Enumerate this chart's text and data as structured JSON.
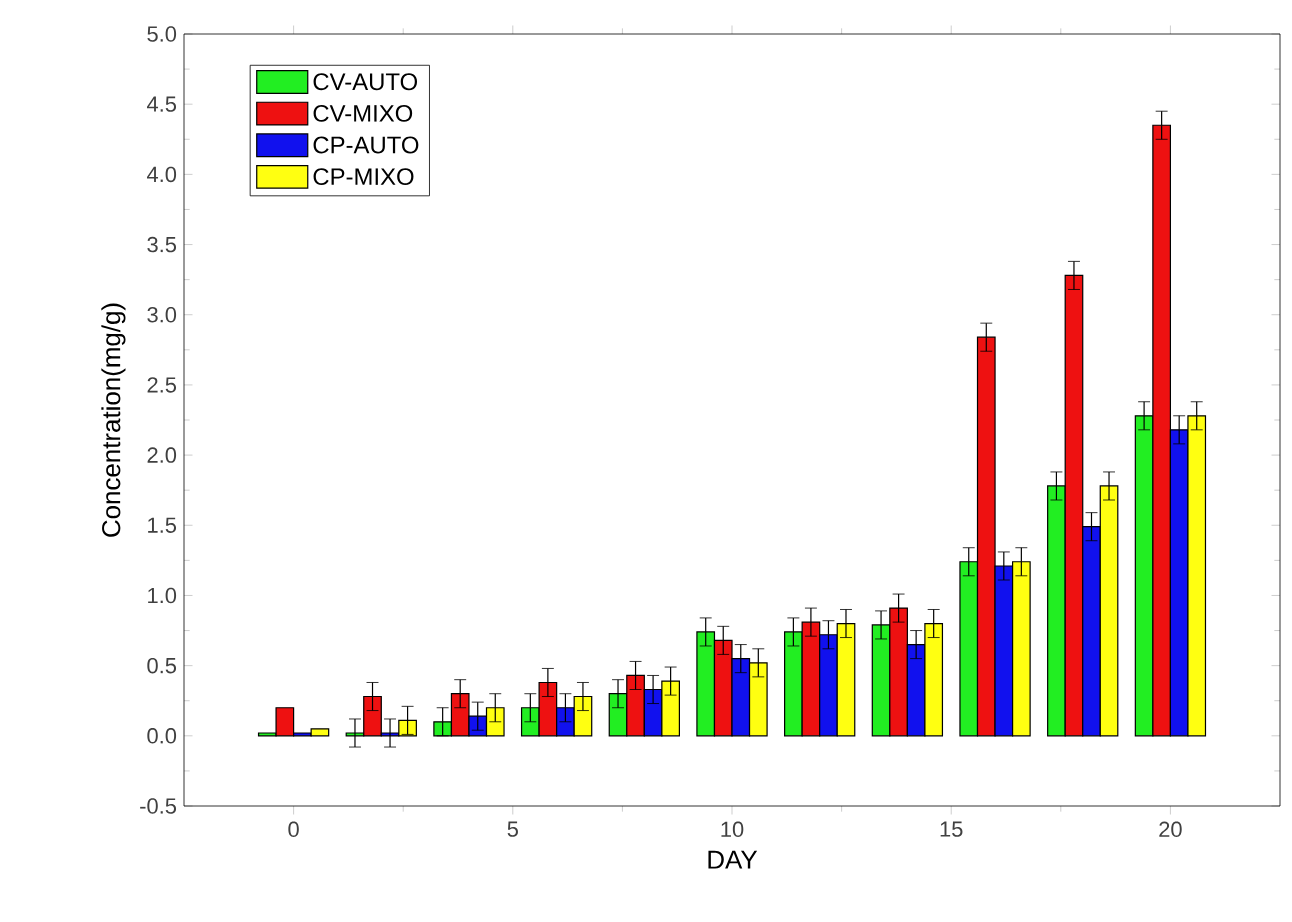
{
  "chart_data": {
    "type": "bar",
    "xlabel": "DAY",
    "ylabel": "Concentration(mg/g)",
    "x": [
      0,
      2,
      4,
      6,
      8,
      10,
      12,
      14,
      16,
      18,
      20
    ],
    "series": [
      {
        "name": "CV-AUTO",
        "color": "#22ee22",
        "values": [
          0.02,
          0.02,
          0.1,
          0.2,
          0.3,
          0.74,
          0.74,
          0.79,
          1.24,
          1.78,
          2.28
        ],
        "errors": [
          null,
          0.1,
          0.1,
          0.1,
          0.1,
          0.1,
          0.1,
          0.1,
          0.1,
          0.1,
          0.1
        ]
      },
      {
        "name": "CV-MIXO",
        "color": "#ee1111",
        "values": [
          0.2,
          0.28,
          0.3,
          0.38,
          0.43,
          0.68,
          0.81,
          0.91,
          2.84,
          3.28,
          4.35
        ],
        "errors": [
          null,
          0.1,
          0.1,
          0.1,
          0.1,
          0.1,
          0.1,
          0.1,
          0.1,
          0.1,
          0.1
        ]
      },
      {
        "name": "CP-AUTO",
        "color": "#1111ee",
        "values": [
          0.02,
          0.02,
          0.14,
          0.2,
          0.33,
          0.55,
          0.72,
          0.65,
          1.21,
          1.49,
          2.18
        ],
        "errors": [
          null,
          0.1,
          0.1,
          0.1,
          0.1,
          0.1,
          0.1,
          0.1,
          0.1,
          0.1,
          0.1
        ]
      },
      {
        "name": "CP-MIXO",
        "color": "#ffff11",
        "values": [
          0.05,
          0.11,
          0.2,
          0.28,
          0.39,
          0.52,
          0.8,
          0.8,
          1.24,
          1.78,
          2.28
        ],
        "errors": [
          null,
          0.1,
          0.1,
          0.1,
          0.1,
          0.1,
          0.1,
          0.1,
          0.1,
          0.1,
          0.1
        ]
      }
    ],
    "xlim": [
      -2.5,
      22.5
    ],
    "ylim": [
      -0.5,
      5.0
    ],
    "xticks": [
      0,
      5,
      10,
      15,
      20
    ],
    "yticks": [
      {
        "value": -0.5,
        "label": "-0.5"
      },
      {
        "value": 0.0,
        "label": "0.0"
      },
      {
        "value": 0.5,
        "label": "0.5"
      },
      {
        "value": 1.0,
        "label": "1.0"
      },
      {
        "value": 1.5,
        "label": "1.5"
      },
      {
        "value": 2.0,
        "label": "2.0"
      },
      {
        "value": 2.5,
        "label": "2.5"
      },
      {
        "value": 3.0,
        "label": "3.0"
      },
      {
        "value": 3.5,
        "label": "3.5"
      },
      {
        "value": 4.0,
        "label": "4.0"
      },
      {
        "value": 4.5,
        "label": "4.5"
      },
      {
        "value": 5.0,
        "label": "5.0"
      }
    ],
    "legend": "top left"
  }
}
